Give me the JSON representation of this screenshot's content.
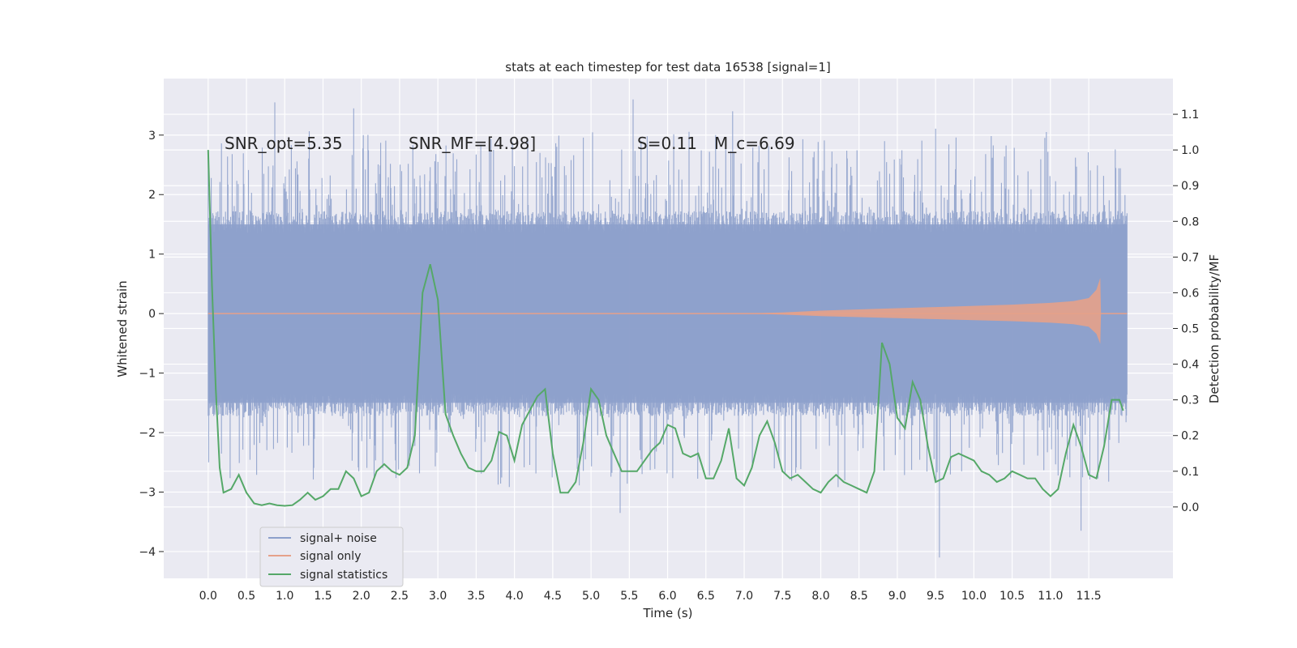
{
  "chart_data": {
    "type": "line",
    "title": "stats at each timestep for test data 16538 [signal=1]",
    "xlabel": "Time (s)",
    "ylabel": "Whitened strain",
    "ylabel_right": "Detection probability/MF",
    "xlim": [
      -0.58,
      12.6
    ],
    "ylim": [
      -4.45,
      3.95
    ],
    "ylim_right": [
      -0.2,
      1.2
    ],
    "x_ticks": [
      0.0,
      0.5,
      1.0,
      1.5,
      2.0,
      2.5,
      3.0,
      3.5,
      4.0,
      4.5,
      5.0,
      5.5,
      6.0,
      6.5,
      7.0,
      7.5,
      8.0,
      8.5,
      9.0,
      9.5,
      10.0,
      10.5,
      11.0,
      11.5
    ],
    "x_tick_labels": [
      "0.0",
      "0.5",
      "1.0",
      "1.5",
      "2.0",
      "2.5",
      "3.0",
      "3.5",
      "4.0",
      "4.5",
      "5.0",
      "5.5",
      "6.0",
      "6.5",
      "7.0",
      "7.5",
      "8.0",
      "8.5",
      "9.0",
      "9.5",
      "10.0",
      "10.5",
      "11.0",
      "11.5"
    ],
    "y_ticks": [
      -4,
      -3,
      -2,
      -1,
      0,
      1,
      2,
      3
    ],
    "y_tick_labels": [
      "−4",
      "−3",
      "−2",
      "−1",
      "0",
      "1",
      "2",
      "3"
    ],
    "y_right_ticks": [
      0.0,
      0.1,
      0.2,
      0.3,
      0.4,
      0.5,
      0.6,
      0.7,
      0.8,
      0.9,
      1.0,
      1.1
    ],
    "y_right_tick_labels": [
      "0.0",
      "0.1",
      "0.2",
      "0.3",
      "0.4",
      "0.5",
      "0.6",
      "0.7",
      "0.8",
      "0.9",
      "1.0",
      "1.1"
    ],
    "grid": true,
    "legend_position": "lower-left",
    "annotations": [
      "SNR_opt=5.35",
      "SNR_MF=[4.98]",
      "S=0.11",
      "M_c=6.69"
    ],
    "series": [
      {
        "name": "signal+ noise",
        "axis": "left",
        "color": "#8da0cb",
        "description": "whitened strain noise, roughly ±1.5 with spikes to about ±3.5",
        "x_range": [
          0.0,
          12.0
        ],
        "core_amplitude": 1.5,
        "notable_peaks": [
          {
            "x": 0.87,
            "y": 3.55
          },
          {
            "x": 1.9,
            "y": 3.45
          },
          {
            "x": 5.55,
            "y": 3.6
          },
          {
            "x": 6.85,
            "y": 3.4
          },
          {
            "x": 9.55,
            "y": -4.1
          },
          {
            "x": 11.4,
            "y": -3.65
          },
          {
            "x": 5.38,
            "y": -3.35
          }
        ]
      },
      {
        "name": "signal only",
        "axis": "left",
        "color": "#e5a18a",
        "description": "chirp waveform growing from ~7.0 s and ending at ~11.65 s",
        "x": [
          0.0,
          7.0,
          7.5,
          8.0,
          8.5,
          9.0,
          9.5,
          10.0,
          10.5,
          11.0,
          11.3,
          11.5,
          11.6,
          11.65,
          11.66,
          12.0
        ],
        "envelope": [
          0.0,
          0.0,
          0.02,
          0.05,
          0.07,
          0.09,
          0.11,
          0.13,
          0.15,
          0.18,
          0.21,
          0.26,
          0.4,
          0.6,
          0.0,
          0.0
        ]
      },
      {
        "name": "signal statistics",
        "axis": "right",
        "color": "#55a868",
        "x": [
          0.0,
          0.05,
          0.1,
          0.15,
          0.2,
          0.3,
          0.4,
          0.5,
          0.6,
          0.7,
          0.8,
          0.9,
          1.0,
          1.1,
          1.2,
          1.3,
          1.4,
          1.5,
          1.6,
          1.7,
          1.8,
          1.9,
          2.0,
          2.1,
          2.2,
          2.3,
          2.4,
          2.5,
          2.6,
          2.7,
          2.8,
          2.9,
          3.0,
          3.1,
          3.2,
          3.3,
          3.4,
          3.5,
          3.6,
          3.7,
          3.8,
          3.9,
          4.0,
          4.1,
          4.2,
          4.3,
          4.4,
          4.5,
          4.6,
          4.7,
          4.8,
          4.9,
          5.0,
          5.1,
          5.2,
          5.3,
          5.4,
          5.5,
          5.6,
          5.7,
          5.8,
          5.9,
          6.0,
          6.1,
          6.2,
          6.3,
          6.4,
          6.5,
          6.6,
          6.7,
          6.8,
          6.9,
          7.0,
          7.1,
          7.2,
          7.3,
          7.4,
          7.5,
          7.6,
          7.7,
          7.8,
          7.9,
          8.0,
          8.1,
          8.2,
          8.3,
          8.4,
          8.5,
          8.6,
          8.7,
          8.8,
          8.9,
          9.0,
          9.1,
          9.2,
          9.3,
          9.4,
          9.5,
          9.6,
          9.7,
          9.8,
          9.9,
          10.0,
          10.1,
          10.2,
          10.3,
          10.4,
          10.5,
          10.6,
          10.7,
          10.8,
          10.9,
          11.0,
          11.1,
          11.2,
          11.3,
          11.4,
          11.5,
          11.6,
          11.7,
          11.8,
          11.9,
          11.95
        ],
        "values": [
          1.0,
          0.62,
          0.33,
          0.11,
          0.04,
          0.05,
          0.09,
          0.04,
          0.01,
          0.005,
          0.01,
          0.005,
          0.003,
          0.005,
          0.02,
          0.04,
          0.02,
          0.03,
          0.05,
          0.05,
          0.1,
          0.08,
          0.03,
          0.04,
          0.1,
          0.12,
          0.1,
          0.09,
          0.11,
          0.2,
          0.6,
          0.68,
          0.58,
          0.26,
          0.2,
          0.15,
          0.11,
          0.1,
          0.1,
          0.13,
          0.21,
          0.2,
          0.13,
          0.23,
          0.27,
          0.31,
          0.33,
          0.15,
          0.04,
          0.04,
          0.07,
          0.18,
          0.33,
          0.3,
          0.2,
          0.15,
          0.1,
          0.1,
          0.1,
          0.13,
          0.16,
          0.18,
          0.23,
          0.22,
          0.15,
          0.14,
          0.15,
          0.08,
          0.08,
          0.13,
          0.22,
          0.08,
          0.06,
          0.11,
          0.2,
          0.24,
          0.18,
          0.1,
          0.08,
          0.09,
          0.07,
          0.05,
          0.04,
          0.07,
          0.09,
          0.07,
          0.06,
          0.05,
          0.04,
          0.1,
          0.46,
          0.4,
          0.25,
          0.22,
          0.35,
          0.3,
          0.17,
          0.07,
          0.08,
          0.14,
          0.15,
          0.14,
          0.13,
          0.1,
          0.09,
          0.07,
          0.08,
          0.1,
          0.09,
          0.08,
          0.08,
          0.05,
          0.03,
          0.05,
          0.15,
          0.23,
          0.17,
          0.09,
          0.08,
          0.17,
          0.3,
          0.3,
          0.27
        ]
      }
    ]
  }
}
